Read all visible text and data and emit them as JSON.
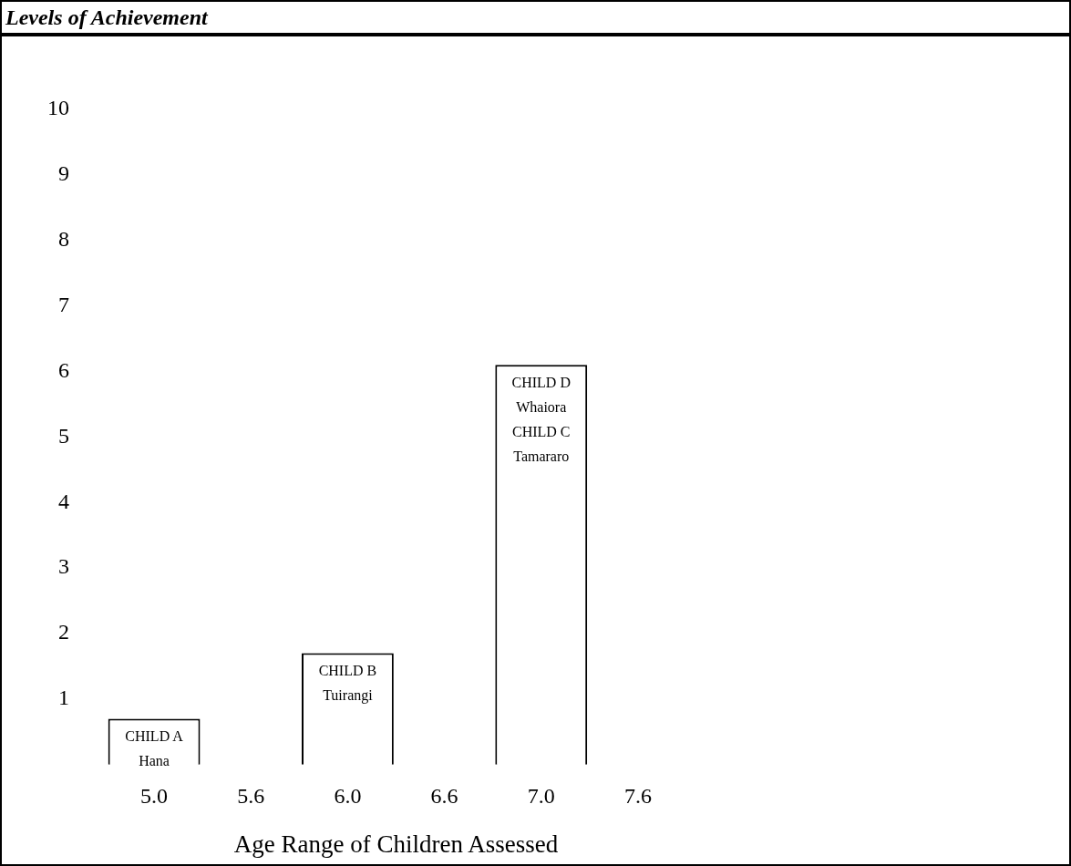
{
  "chart_data": {
    "type": "bar",
    "title": "Levels of Achievement",
    "xlabel": "Age Range of Children Assessed",
    "categories": [
      "5.0",
      "5.6",
      "6.0",
      "6.6",
      "7.0",
      "7.6"
    ],
    "series": [
      {
        "color": "#ffffff",
        "values": [
          0.7,
          null,
          1.7,
          null,
          6.1,
          null
        ],
        "value_labels": [
          "CHILD A\nHana",
          null,
          "CHILD B\nTuirangi",
          null,
          "CHILD D\nWhaiora\nCHILD C\nTamararo",
          null
        ]
      }
    ],
    "ylim": [
      0,
      10
    ],
    "yticks": [
      1,
      2,
      3,
      4,
      5,
      6,
      7,
      8,
      9,
      10
    ],
    "grid": false,
    "legend": false
  }
}
